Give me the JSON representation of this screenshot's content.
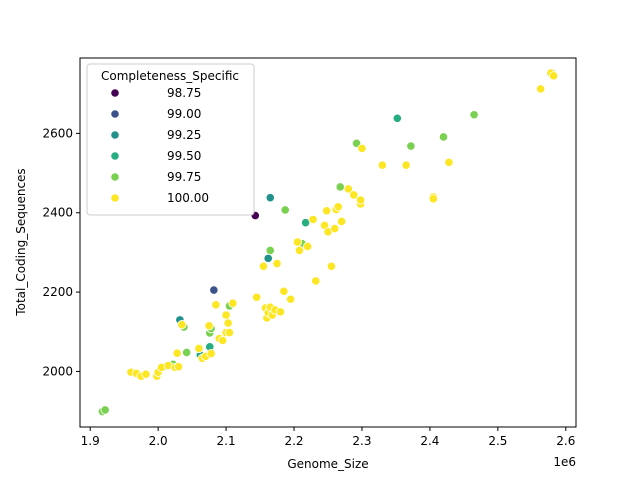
{
  "chart_data": {
    "type": "scatter",
    "xlabel": "Genome_Size",
    "ylabel": "Total_Coding_Sequences",
    "x_offset_label": "1e6",
    "xlim": [
      1.885,
      2.615
    ],
    "ylim": [
      1860,
      2790
    ],
    "x_ticks": [
      {
        "value": 1.9,
        "label": "1.9"
      },
      {
        "value": 2.0,
        "label": "2.0"
      },
      {
        "value": 2.1,
        "label": "2.1"
      },
      {
        "value": 2.2,
        "label": "2.2"
      },
      {
        "value": 2.3,
        "label": "2.3"
      },
      {
        "value": 2.4,
        "label": "2.4"
      },
      {
        "value": 2.5,
        "label": "2.5"
      },
      {
        "value": 2.6,
        "label": "2.6"
      }
    ],
    "y_ticks": [
      {
        "value": 2000,
        "label": "2000"
      },
      {
        "value": 2200,
        "label": "2200"
      },
      {
        "value": 2400,
        "label": "2400"
      },
      {
        "value": 2600,
        "label": "2600"
      }
    ],
    "grid": false,
    "legend": {
      "title": "Completeness_Specific",
      "placement": "upper-left",
      "entries": [
        {
          "label": "98.75",
          "color": "#440154"
        },
        {
          "label": "99.00",
          "color": "#3b528b"
        },
        {
          "label": "99.25",
          "color": "#21918c"
        },
        {
          "label": "99.50",
          "color": "#27ad81"
        },
        {
          "label": "99.75",
          "color": "#7ad151"
        },
        {
          "label": "100.00",
          "color": "#fde725"
        }
      ]
    },
    "series": [
      {
        "color": "#440154",
        "points": [
          [
            2.143,
            2393
          ]
        ]
      },
      {
        "color": "#3b528b",
        "points": [
          [
            2.082,
            2205
          ]
        ]
      },
      {
        "color": "#21918c",
        "points": [
          [
            2.032,
            2130
          ],
          [
            2.165,
            2438
          ],
          [
            2.162,
            2285
          ]
        ]
      },
      {
        "color": "#27ad81",
        "points": [
          [
            2.352,
            2638
          ],
          [
            2.062,
            2042
          ],
          [
            2.076,
            2062
          ],
          [
            2.217,
            2375
          ]
        ]
      },
      {
        "color": "#7ad151",
        "points": [
          [
            1.918,
            1899
          ],
          [
            1.922,
            1903
          ],
          [
            2.012,
            2013
          ],
          [
            2.022,
            2018
          ],
          [
            2.042,
            2048
          ],
          [
            2.038,
            2112
          ],
          [
            2.076,
            2097
          ],
          [
            2.078,
            2108
          ],
          [
            2.105,
            2165
          ],
          [
            2.165,
            2305
          ],
          [
            2.187,
            2407
          ],
          [
            2.212,
            2322
          ],
          [
            2.268,
            2465
          ],
          [
            2.292,
            2575
          ],
          [
            2.372,
            2568
          ],
          [
            2.42,
            2591
          ],
          [
            2.465,
            2647
          ],
          [
            2.58,
            2752
          ]
        ]
      },
      {
        "color": "#fde725",
        "points": [
          [
            1.96,
            1998
          ],
          [
            1.968,
            1995
          ],
          [
            1.975,
            1988
          ],
          [
            1.982,
            1993
          ],
          [
            1.998,
            1988
          ],
          [
            2.0,
            1998
          ],
          [
            2.005,
            2010
          ],
          [
            2.015,
            2015
          ],
          [
            2.025,
            2010
          ],
          [
            2.03,
            2012
          ],
          [
            2.028,
            2046
          ],
          [
            2.035,
            2118
          ],
          [
            2.06,
            2058
          ],
          [
            2.065,
            2033
          ],
          [
            2.07,
            2038
          ],
          [
            2.075,
            2115
          ],
          [
            2.078,
            2045
          ],
          [
            2.085,
            2168
          ],
          [
            2.09,
            2083
          ],
          [
            2.095,
            2078
          ],
          [
            2.1,
            2098
          ],
          [
            2.1,
            2142
          ],
          [
            2.103,
            2122
          ],
          [
            2.105,
            2098
          ],
          [
            2.11,
            2172
          ],
          [
            2.145,
            2187
          ],
          [
            2.155,
            2265
          ],
          [
            2.158,
            2160
          ],
          [
            2.16,
            2135
          ],
          [
            2.162,
            2148
          ],
          [
            2.165,
            2162
          ],
          [
            2.168,
            2142
          ],
          [
            2.172,
            2155
          ],
          [
            2.175,
            2272
          ],
          [
            2.18,
            2150
          ],
          [
            2.185,
            2202
          ],
          [
            2.195,
            2182
          ],
          [
            2.205,
            2326
          ],
          [
            2.208,
            2305
          ],
          [
            2.22,
            2315
          ],
          [
            2.228,
            2383
          ],
          [
            2.232,
            2228
          ],
          [
            2.245,
            2368
          ],
          [
            2.248,
            2405
          ],
          [
            2.25,
            2352
          ],
          [
            2.255,
            2265
          ],
          [
            2.26,
            2360
          ],
          [
            2.262,
            2408
          ],
          [
            2.265,
            2415
          ],
          [
            2.27,
            2378
          ],
          [
            2.28,
            2460
          ],
          [
            2.288,
            2445
          ],
          [
            2.298,
            2422
          ],
          [
            2.298,
            2432
          ],
          [
            2.3,
            2562
          ],
          [
            2.33,
            2520
          ],
          [
            2.365,
            2520
          ],
          [
            2.405,
            2440
          ],
          [
            2.405,
            2435
          ],
          [
            2.428,
            2527
          ],
          [
            2.563,
            2712
          ],
          [
            2.578,
            2752
          ],
          [
            2.582,
            2745
          ]
        ]
      }
    ]
  }
}
